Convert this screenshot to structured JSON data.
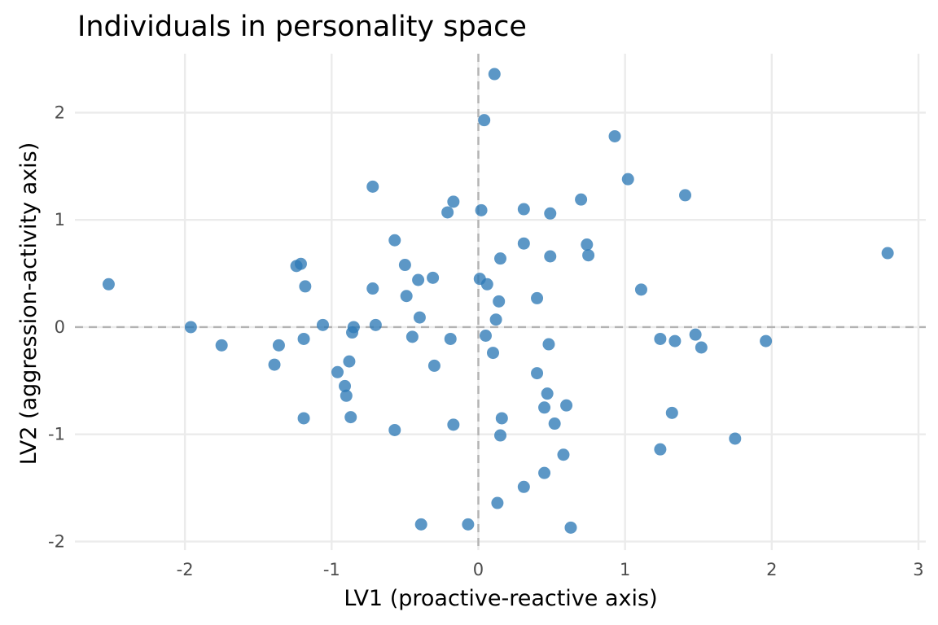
{
  "chart_data": {
    "type": "scatter",
    "title": "Individuals in personality space",
    "xlabel": "LV1 (proactive-reactive axis)",
    "ylabel": "LV2 (aggression-activity axis)",
    "xlim": [
      -2.75,
      3.05
    ],
    "ylim": [
      -2.08,
      2.55
    ],
    "x_ticks": [
      -2,
      -1,
      0,
      1,
      2,
      3
    ],
    "x_tick_labels": [
      "-2",
      "-1",
      "0",
      "1",
      "2",
      "3"
    ],
    "y_ticks": [
      -2,
      -1,
      0,
      1,
      2
    ],
    "y_tick_labels": [
      "-2",
      "-1",
      "0",
      "1",
      "2"
    ],
    "grid": true,
    "reference_lines": {
      "x": 0,
      "y": 0,
      "style": "dashed"
    },
    "point_color": "#2e7ab6",
    "series": [
      {
        "points": [
          {
            "x": 0.11,
            "y": 2.36
          },
          {
            "x": 0.04,
            "y": 1.93
          },
          {
            "x": 0.93,
            "y": 1.78
          },
          {
            "x": 1.02,
            "y": 1.38
          },
          {
            "x": -0.72,
            "y": 1.31
          },
          {
            "x": 1.41,
            "y": 1.23
          },
          {
            "x": 0.7,
            "y": 1.19
          },
          {
            "x": -0.17,
            "y": 1.17
          },
          {
            "x": 0.31,
            "y": 1.1
          },
          {
            "x": 0.02,
            "y": 1.09
          },
          {
            "x": -0.21,
            "y": 1.07
          },
          {
            "x": 0.49,
            "y": 1.06
          },
          {
            "x": -0.57,
            "y": 0.81
          },
          {
            "x": 0.31,
            "y": 0.78
          },
          {
            "x": 0.74,
            "y": 0.77
          },
          {
            "x": 2.79,
            "y": 0.69
          },
          {
            "x": 0.75,
            "y": 0.67
          },
          {
            "x": 0.49,
            "y": 0.66
          },
          {
            "x": 0.15,
            "y": 0.64
          },
          {
            "x": -1.21,
            "y": 0.59
          },
          {
            "x": -1.24,
            "y": 0.57
          },
          {
            "x": -0.5,
            "y": 0.58
          },
          {
            "x": -0.31,
            "y": 0.46
          },
          {
            "x": 0.01,
            "y": 0.45
          },
          {
            "x": -0.41,
            "y": 0.44
          },
          {
            "x": -2.52,
            "y": 0.4
          },
          {
            "x": 0.06,
            "y": 0.4
          },
          {
            "x": -1.18,
            "y": 0.38
          },
          {
            "x": -0.72,
            "y": 0.36
          },
          {
            "x": 1.11,
            "y": 0.35
          },
          {
            "x": -0.49,
            "y": 0.29
          },
          {
            "x": 0.4,
            "y": 0.27
          },
          {
            "x": 0.14,
            "y": 0.24
          },
          {
            "x": -0.4,
            "y": 0.09
          },
          {
            "x": 0.12,
            "y": 0.07
          },
          {
            "x": -1.06,
            "y": 0.02
          },
          {
            "x": -0.7,
            "y": 0.02
          },
          {
            "x": -1.96,
            "y": 0.0
          },
          {
            "x": -0.85,
            "y": 0.0
          },
          {
            "x": -0.86,
            "y": -0.05
          },
          {
            "x": 1.48,
            "y": -0.07
          },
          {
            "x": 0.05,
            "y": -0.08
          },
          {
            "x": -0.45,
            "y": -0.09
          },
          {
            "x": -0.19,
            "y": -0.11
          },
          {
            "x": 1.24,
            "y": -0.11
          },
          {
            "x": -1.19,
            "y": -0.11
          },
          {
            "x": 1.96,
            "y": -0.13
          },
          {
            "x": 1.34,
            "y": -0.13
          },
          {
            "x": 0.48,
            "y": -0.16
          },
          {
            "x": -1.36,
            "y": -0.17
          },
          {
            "x": -1.75,
            "y": -0.17
          },
          {
            "x": 1.52,
            "y": -0.19
          },
          {
            "x": 0.1,
            "y": -0.24
          },
          {
            "x": -0.88,
            "y": -0.32
          },
          {
            "x": -1.39,
            "y": -0.35
          },
          {
            "x": -0.3,
            "y": -0.36
          },
          {
            "x": -0.96,
            "y": -0.42
          },
          {
            "x": 0.4,
            "y": -0.43
          },
          {
            "x": -0.91,
            "y": -0.55
          },
          {
            "x": 0.47,
            "y": -0.62
          },
          {
            "x": -0.9,
            "y": -0.64
          },
          {
            "x": 0.6,
            "y": -0.73
          },
          {
            "x": 0.45,
            "y": -0.75
          },
          {
            "x": 1.32,
            "y": -0.8
          },
          {
            "x": -0.87,
            "y": -0.84
          },
          {
            "x": -1.19,
            "y": -0.85
          },
          {
            "x": 0.16,
            "y": -0.85
          },
          {
            "x": 0.52,
            "y": -0.9
          },
          {
            "x": -0.17,
            "y": -0.91
          },
          {
            "x": -0.57,
            "y": -0.96
          },
          {
            "x": 0.15,
            "y": -1.01
          },
          {
            "x": 1.75,
            "y": -1.04
          },
          {
            "x": 1.24,
            "y": -1.14
          },
          {
            "x": 0.58,
            "y": -1.19
          },
          {
            "x": 0.45,
            "y": -1.36
          },
          {
            "x": 0.31,
            "y": -1.49
          },
          {
            "x": 0.13,
            "y": -1.64
          },
          {
            "x": -0.39,
            "y": -1.84
          },
          {
            "x": -0.07,
            "y": -1.84
          },
          {
            "x": 0.63,
            "y": -1.87
          }
        ]
      }
    ]
  }
}
